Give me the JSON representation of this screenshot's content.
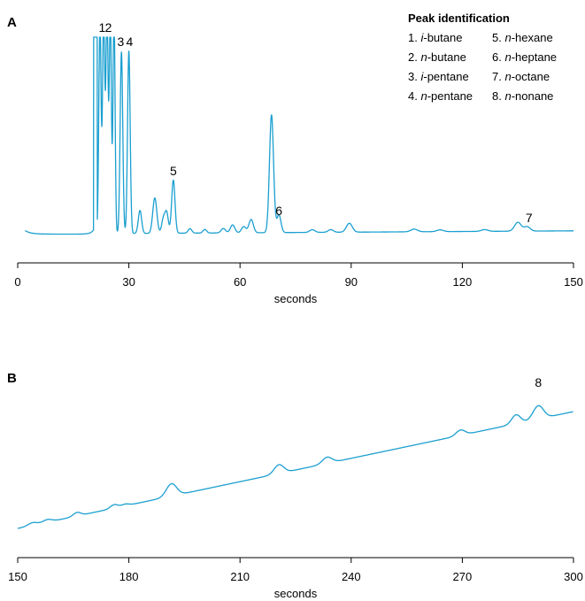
{
  "legend": {
    "title": "Peak identification",
    "items": [
      {
        "num": "1.",
        "prefix": "i",
        "name": "-butane"
      },
      {
        "num": "2.",
        "prefix": "n",
        "name": "-butane"
      },
      {
        "num": "3.",
        "prefix": "i",
        "name": "-pentane"
      },
      {
        "num": "4.",
        "prefix": "n",
        "name": "-pentane"
      },
      {
        "num": "5.",
        "prefix": "n",
        "name": "-hexane"
      },
      {
        "num": "6.",
        "prefix": "n",
        "name": "-heptane"
      },
      {
        "num": "7.",
        "prefix": "n",
        "name": "-octane"
      },
      {
        "num": "8.",
        "prefix": "n",
        "name": "-nonane"
      }
    ]
  },
  "chart_data": [
    {
      "type": "line",
      "panel_label": "A",
      "xlabel": "seconds",
      "ylabel": "",
      "xlim": [
        0,
        150
      ],
      "xticks": [
        0,
        30,
        60,
        90,
        120,
        150
      ],
      "ylim": [
        0,
        100
      ],
      "color": "#1a9fd0",
      "peak_labels": [
        {
          "text": "1",
          "x": 22.8
        },
        {
          "text": "2",
          "x": 24.5
        },
        {
          "text": "3",
          "x": 27.8
        },
        {
          "text": "4",
          "x": 30.2
        },
        {
          "text": "5",
          "x": 42.0
        },
        {
          "text": "6",
          "x": 70.5
        },
        {
          "text": "7",
          "x": 138.0
        }
      ]
    },
    {
      "type": "line",
      "panel_label": "B",
      "xlabel": "seconds",
      "ylabel": "",
      "xlim": [
        150,
        300
      ],
      "xticks": [
        150,
        180,
        210,
        240,
        270,
        300
      ],
      "ylim": [
        0,
        100
      ],
      "color": "#1a9fd0",
      "peak_labels": [
        {
          "text": "8",
          "x": 290.5
        }
      ]
    }
  ]
}
